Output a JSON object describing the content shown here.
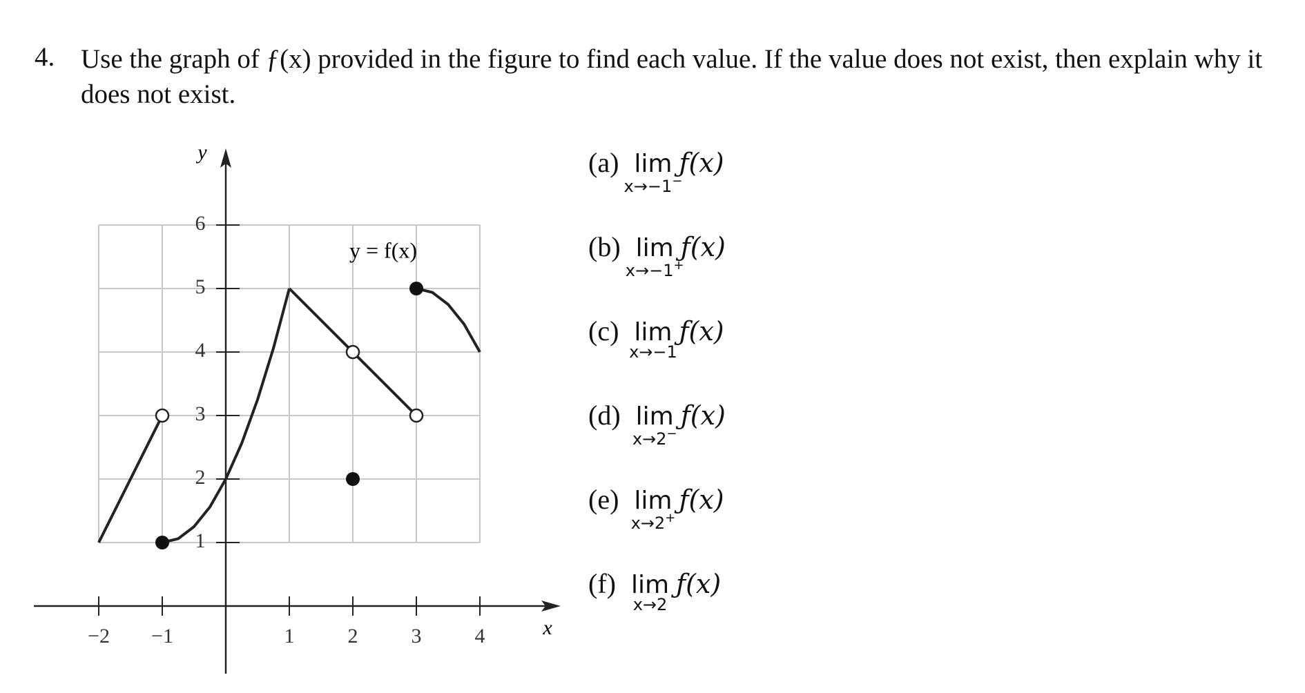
{
  "problem": {
    "number": "4.",
    "text": "Use the graph of ƒ(x) provided in the figure to find each value. If the value does not exist, then explain why it does not exist."
  },
  "figure": {
    "y_label": "y",
    "x_label": "x",
    "curve_label": "y = f(x)",
    "xticks": [
      {
        "value": -2,
        "label": "−2"
      },
      {
        "value": -1,
        "label": "−1"
      },
      1,
      2,
      3,
      4
    ],
    "yticks": [
      1,
      2,
      3,
      4,
      5,
      6
    ],
    "segments": [
      {
        "x": [
          -2,
          -1
        ],
        "y": [
          1,
          3
        ]
      },
      {
        "x": [
          -1,
          -0.75,
          -0.5,
          -0.25,
          0,
          0.25,
          0.5,
          0.75,
          1
        ],
        "y": [
          1,
          1.06,
          1.25,
          1.56,
          2,
          2.56,
          3.25,
          4.06,
          5
        ]
      },
      {
        "x": [
          1,
          3
        ],
        "y": [
          5,
          3
        ]
      },
      {
        "x": [
          3,
          3.25,
          3.5,
          3.75,
          4
        ],
        "y": [
          5,
          4.94,
          4.75,
          4.44,
          4
        ]
      }
    ],
    "open_points": {
      "x": [
        -1,
        2,
        3
      ],
      "y": [
        3,
        4,
        3
      ]
    },
    "closed_points": {
      "x": [
        -1,
        2,
        3
      ],
      "y": [
        1,
        2,
        5
      ]
    }
  },
  "parts": [
    {
      "label": "(a)",
      "lim": "lim",
      "approach": "x→−1",
      "side": "−",
      "func": "ƒ(x)"
    },
    {
      "label": "(b)",
      "lim": "lim",
      "approach": "x→−1",
      "side": "+",
      "func": "ƒ(x)"
    },
    {
      "label": "(c)",
      "lim": "lim",
      "approach": "x→−1",
      "func": "ƒ(x)"
    },
    {
      "label": "(d)",
      "lim": "lim",
      "approach": "x→2",
      "side": "−",
      "func": "ƒ(x)"
    },
    {
      "label": "(e)",
      "lim": "lim",
      "approach": "x→2",
      "side": "+",
      "func": "ƒ(x)"
    },
    {
      "label": "(f)",
      "lim": "lim",
      "approach": "x→2",
      "func": "ƒ(x)"
    }
  ]
}
